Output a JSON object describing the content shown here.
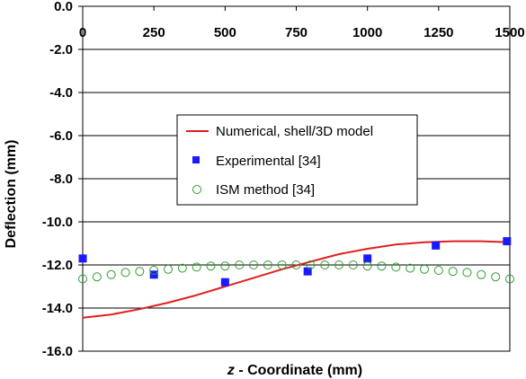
{
  "chart_data": {
    "type": "scatter",
    "title": "",
    "xlabel_var": "z",
    "xlabel_rest": " - Coordinate (mm)",
    "ylabel": "Deflection (mm)",
    "xlim": [
      0,
      1500
    ],
    "ylim": [
      -16,
      0
    ],
    "x_axis_position": "top",
    "x_ticks": [
      0,
      250,
      500,
      750,
      1000,
      1250,
      1500
    ],
    "x_tick_labels": [
      "0",
      "250",
      "500",
      "750",
      "1000",
      "1250",
      "1500"
    ],
    "y_ticks": [
      0,
      -2,
      -4,
      -6,
      -8,
      -10,
      -12,
      -14,
      -16
    ],
    "y_tick_labels": [
      "0.0",
      "-2.0",
      "-4.0",
      "-6.0",
      "-8.0",
      "-10.0",
      "-12.0",
      "-14.0",
      "-16.0"
    ],
    "grid": "horizontal",
    "legend_position": "center",
    "series": [
      {
        "name": "Numerical, shell/3D model",
        "kind": "line",
        "color": "#e02020",
        "x": [
          0,
          100,
          200,
          300,
          400,
          500,
          600,
          700,
          800,
          900,
          1000,
          1100,
          1200,
          1300,
          1400,
          1500
        ],
        "y": [
          -14.45,
          -14.3,
          -14.05,
          -13.75,
          -13.4,
          -13.0,
          -12.6,
          -12.2,
          -11.85,
          -11.5,
          -11.25,
          -11.05,
          -10.95,
          -10.9,
          -10.9,
          -10.95
        ]
      },
      {
        "name": "Experimental [34]",
        "kind": "square",
        "color": "#1a1aff",
        "x": [
          0,
          250,
          500,
          790,
          1000,
          1240,
          1490
        ],
        "y": [
          -11.7,
          -12.45,
          -12.8,
          -12.3,
          -11.7,
          -11.1,
          -10.9
        ]
      },
      {
        "name": "ISM method [34]",
        "kind": "circle",
        "color": "#2e9e2e",
        "x": [
          0,
          50,
          100,
          150,
          200,
          250,
          300,
          350,
          400,
          450,
          500,
          550,
          600,
          650,
          700,
          750,
          800,
          850,
          900,
          950,
          1000,
          1050,
          1100,
          1150,
          1200,
          1250,
          1300,
          1350,
          1400,
          1450,
          1500
        ],
        "y": [
          -12.65,
          -12.55,
          -12.45,
          -12.35,
          -12.3,
          -12.25,
          -12.2,
          -12.15,
          -12.1,
          -12.05,
          -12.05,
          -12.0,
          -12.0,
          -12.0,
          -12.0,
          -12.0,
          -12.0,
          -12.0,
          -12.0,
          -12.0,
          -12.05,
          -12.05,
          -12.1,
          -12.15,
          -12.2,
          -12.25,
          -12.3,
          -12.35,
          -12.45,
          -12.55,
          -12.65
        ]
      }
    ]
  }
}
